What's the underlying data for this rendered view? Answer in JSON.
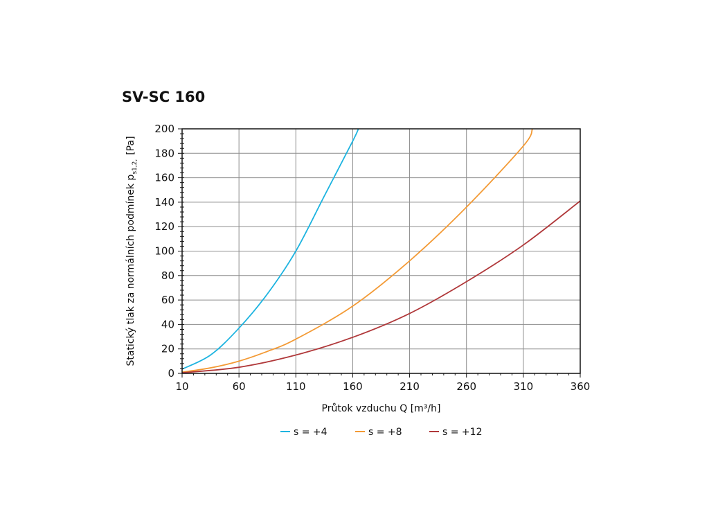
{
  "chart_data": {
    "type": "line",
    "title": "SV-SC 160",
    "xlabel": "Průtok vzduchu Q [m³/h]",
    "ylabel_main": "Statický tlak za normálních podmínek p",
    "ylabel_sub": "s1,2,",
    "ylabel_unit": "[Pa]",
    "xlim": [
      10,
      360
    ],
    "ylim": [
      0,
      200
    ],
    "xticks": [
      10,
      60,
      110,
      160,
      210,
      260,
      310,
      360
    ],
    "yticks": [
      0,
      20,
      40,
      60,
      80,
      100,
      120,
      140,
      160,
      180,
      200
    ],
    "grid": true,
    "legend_position": "bottom",
    "series": [
      {
        "name": "s = +4",
        "color": "#1eb4e0",
        "x": [
          10,
          35,
          60,
          85,
          110,
          135,
          160,
          165
        ],
        "y": [
          3.5,
          15,
          37,
          65,
          100,
          145,
          190,
          200
        ]
      },
      {
        "name": "s = +8",
        "color": "#f39a35",
        "x": [
          10,
          35,
          60,
          85,
          110,
          160,
          210,
          260,
          310,
          318
        ],
        "y": [
          1,
          4.5,
          10,
          18,
          28,
          55,
          92,
          136,
          186,
          200
        ]
      },
      {
        "name": "s = +12",
        "color": "#b0383a",
        "x": [
          10,
          60,
          110,
          160,
          210,
          260,
          310,
          360
        ],
        "y": [
          0.5,
          5,
          15,
          29.5,
          49,
          75,
          105,
          141
        ]
      }
    ]
  }
}
